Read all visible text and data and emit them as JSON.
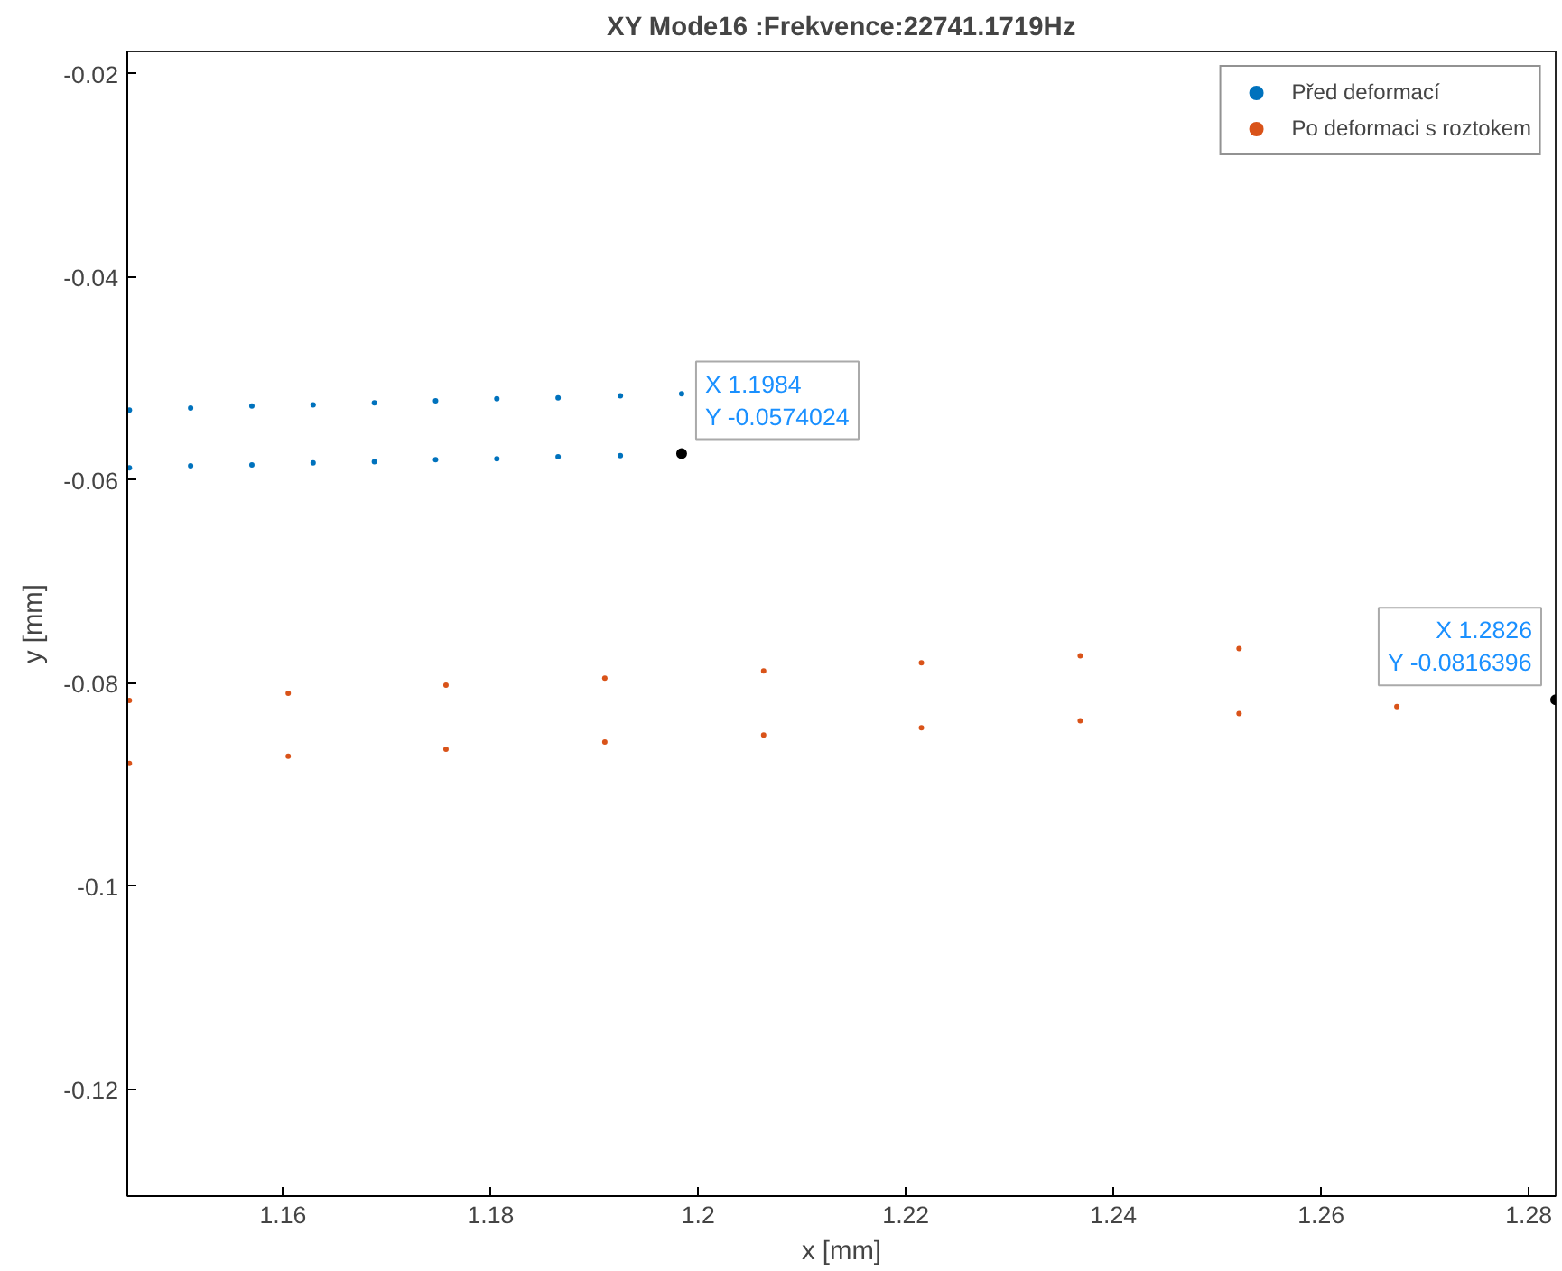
{
  "chart_data": {
    "type": "scatter",
    "title": "XY Mode16 :Frekvence:22741.1719Hz",
    "xlabel": "x [mm]",
    "ylabel": "y [mm]",
    "xlim": [
      1.145,
      1.2826
    ],
    "ylim": [
      -0.1305,
      -0.0178
    ],
    "xticks": [
      1.16,
      1.18,
      1.2,
      1.22,
      1.24,
      1.26,
      1.28
    ],
    "yticks": [
      -0.12,
      -0.1,
      -0.08,
      -0.06,
      -0.04,
      -0.02
    ],
    "grid": false,
    "legend": "top right",
    "marker": "circle",
    "series": [
      {
        "name": "Před deformací",
        "color": "#0072bd",
        "x": [
          1.1452,
          1.1511,
          1.157,
          1.1629,
          1.1688,
          1.1747,
          1.1806,
          1.1865,
          1.1925,
          1.1984,
          1.1452,
          1.1511,
          1.157,
          1.1629,
          1.1688,
          1.1747,
          1.1806,
          1.1865,
          1.1925,
          1.1984
        ],
        "values": [
          -0.0531,
          -0.0529,
          -0.0527,
          -0.0526,
          -0.0524,
          -0.0522,
          -0.052,
          -0.0519,
          -0.0517,
          -0.0515,
          -0.0588,
          -0.0586,
          -0.0585,
          -0.0583,
          -0.0582,
          -0.058,
          -0.0579,
          -0.0577,
          -0.0576,
          -0.0574024
        ]
      },
      {
        "name": "Po deformaci s roztokem",
        "color": "#d95319",
        "x": [
          1.1452,
          1.1605,
          1.1757,
          1.191,
          1.2063,
          1.2215,
          1.2368,
          1.2521,
          1.1452,
          1.1605,
          1.1757,
          1.191,
          1.2063,
          1.2215,
          1.2368,
          1.2521,
          1.2673,
          1.2826
        ],
        "values": [
          -0.0817,
          -0.081,
          -0.0802,
          -0.0795,
          -0.0788,
          -0.078,
          -0.0773,
          -0.0766,
          -0.0879,
          -0.0872,
          -0.0865,
          -0.0858,
          -0.0851,
          -0.0844,
          -0.0837,
          -0.083,
          -0.0823,
          -0.0816396
        ]
      }
    ],
    "annotations": [
      {
        "text": "X 1.1984\nY -0.0574024",
        "x": 1.1984,
        "y": -0.0574024
      },
      {
        "text": "X 1.2826\nY -0.0816396",
        "x": 1.2826,
        "y": -0.0816396
      }
    ]
  }
}
